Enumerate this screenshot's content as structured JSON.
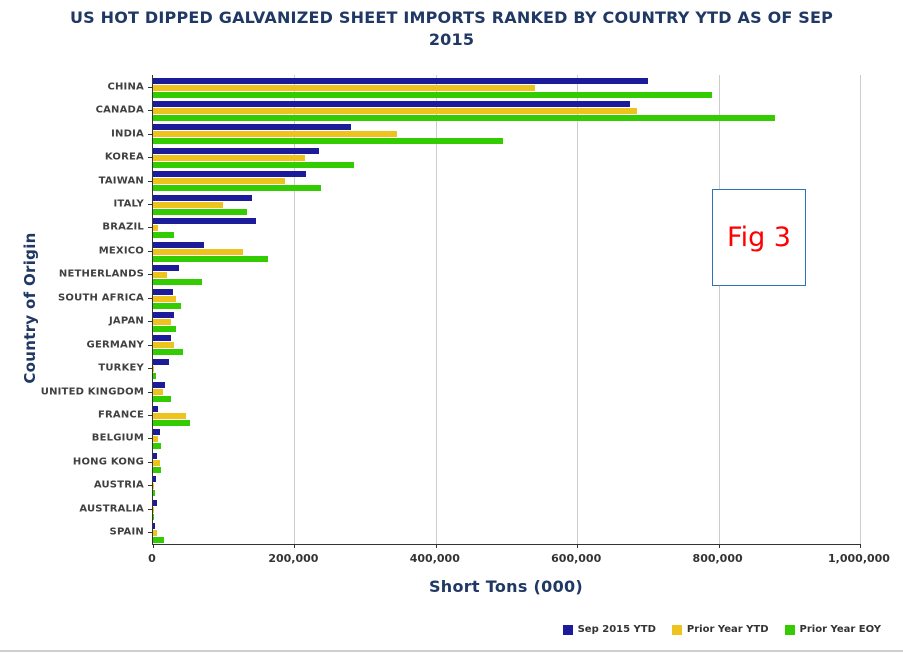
{
  "title": "US HOT DIPPED GALVANIZED SHEET IMPORTS RANKED BY COUNTRY YTD AS OF SEP 2015",
  "title_lines": [
    "US HOT DIPPED GALVANIZED SHEET IMPORTS RANKED BY COUNTRY YTD AS OF SEP",
    "2015"
  ],
  "fig_label": "Fig 3",
  "colors": {
    "title": "#1f3864",
    "axis_text": "#333333",
    "fig_label_text": "#ff0000",
    "fig_box_border": "#2e74b5",
    "gridline": "#cccccc"
  },
  "chart_data": {
    "type": "bar",
    "orientation": "horizontal",
    "title": "US HOT DIPPED GALVANIZED SHEET IMPORTS RANKED BY COUNTRY YTD AS OF SEP 2015",
    "xlabel": "Short Tons (000)",
    "ylabel": "Country of Origin",
    "xlim": [
      0,
      1000000
    ],
    "grid": true,
    "legend_position": "bottom-right",
    "xticks": [
      {
        "value": 0,
        "label": "0"
      },
      {
        "value": 200000,
        "label": "200,000"
      },
      {
        "value": 400000,
        "label": "400,000"
      },
      {
        "value": 600000,
        "label": "600,000"
      },
      {
        "value": 800000,
        "label": "800,000"
      },
      {
        "value": 1000000,
        "label": "1,000,000"
      }
    ],
    "categories": [
      "CHINA",
      "CANADA",
      "INDIA",
      "KOREA",
      "TAIWAN",
      "ITALY",
      "BRAZIL",
      "MEXICO",
      "NETHERLANDS",
      "SOUTH AFRICA",
      "JAPAN",
      "GERMANY",
      "TURKEY",
      "UNITED KINGDOM",
      "FRANCE",
      "BELGIUM",
      "HONG KONG",
      "AUSTRIA",
      "AUSTRALIA",
      "SPAIN"
    ],
    "series": [
      {
        "name": "Sep 2015 YTD",
        "color": "#1c1c9a",
        "values": [
          700000,
          675000,
          280000,
          235000,
          216000,
          140000,
          145000,
          72000,
          37000,
          28000,
          30000,
          25000,
          22000,
          17000,
          7000,
          10000,
          6000,
          4000,
          6000,
          3000
        ]
      },
      {
        "name": "Prior Year YTD",
        "color": "#efc31d",
        "values": [
          540000,
          685000,
          345000,
          215000,
          186000,
          99000,
          7000,
          127000,
          20000,
          33000,
          26000,
          30000,
          2000,
          14000,
          46000,
          7000,
          10000,
          2000,
          1000,
          6000
        ]
      },
      {
        "name": "Prior Year EOY",
        "color": "#33cc00",
        "values": [
          790000,
          880000,
          495000,
          285000,
          237000,
          133000,
          30000,
          162000,
          70000,
          40000,
          33000,
          42000,
          4000,
          25000,
          53000,
          12000,
          12000,
          3000,
          2000,
          15000
        ]
      }
    ]
  }
}
